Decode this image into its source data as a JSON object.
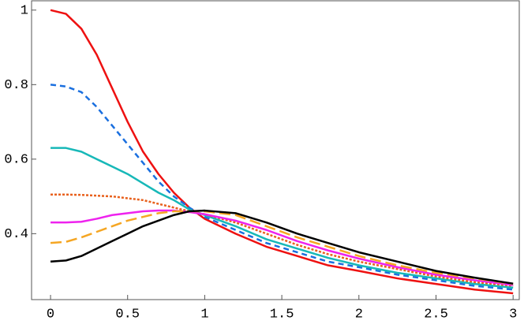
{
  "chart_data": {
    "type": "line",
    "x": [
      0,
      0.1,
      0.2,
      0.3,
      0.4,
      0.5,
      0.6,
      0.7,
      0.8,
      0.9,
      1,
      1.2,
      1.4,
      1.6,
      1.8,
      2,
      2.25,
      2.5,
      2.75,
      3
    ],
    "series": [
      {
        "color": "#ee1111",
        "dash": "none",
        "values": [
          1,
          0.99,
          0.95,
          0.88,
          0.79,
          0.7,
          0.62,
          0.56,
          0.51,
          0.47,
          0.44,
          0.4,
          0.365,
          0.34,
          0.315,
          0.3,
          0.28,
          0.265,
          0.25,
          0.24
        ]
      },
      {
        "color": "#1a6fdf",
        "dash": "7,5",
        "values": [
          0.8,
          0.795,
          0.78,
          0.74,
          0.69,
          0.64,
          0.59,
          0.54,
          0.5,
          0.47,
          0.445,
          0.41,
          0.375,
          0.35,
          0.325,
          0.31,
          0.29,
          0.275,
          0.26,
          0.25
        ]
      },
      {
        "color": "#17b8b8",
        "dash": "none",
        "values": [
          0.63,
          0.63,
          0.62,
          0.6,
          0.58,
          0.56,
          0.535,
          0.51,
          0.49,
          0.465,
          0.45,
          0.42,
          0.385,
          0.36,
          0.335,
          0.315,
          0.295,
          0.28,
          0.265,
          0.255
        ]
      },
      {
        "color": "#e8601c",
        "dash": "3,2",
        "values": [
          0.505,
          0.505,
          0.504,
          0.502,
          0.5,
          0.495,
          0.49,
          0.48,
          0.47,
          0.46,
          0.452,
          0.43,
          0.4,
          0.37,
          0.345,
          0.325,
          0.305,
          0.285,
          0.27,
          0.26
        ]
      },
      {
        "color": "#ee22ee",
        "dash": "none",
        "values": [
          0.43,
          0.43,
          0.432,
          0.44,
          0.45,
          0.455,
          0.46,
          0.462,
          0.462,
          0.458,
          0.452,
          0.435,
          0.41,
          0.38,
          0.355,
          0.333,
          0.31,
          0.29,
          0.275,
          0.262
        ]
      },
      {
        "color": "#f5a623",
        "dash": "14,6",
        "values": [
          0.375,
          0.378,
          0.39,
          0.405,
          0.42,
          0.435,
          0.445,
          0.455,
          0.46,
          0.46,
          0.46,
          0.45,
          0.42,
          0.39,
          0.365,
          0.34,
          0.315,
          0.295,
          0.28,
          0.265
        ]
      },
      {
        "color": "#000000",
        "dash": "none",
        "values": [
          0.325,
          0.328,
          0.34,
          0.36,
          0.38,
          0.4,
          0.42,
          0.435,
          0.45,
          0.46,
          0.462,
          0.455,
          0.43,
          0.4,
          0.375,
          0.35,
          0.325,
          0.3,
          0.282,
          0.266
        ]
      }
    ],
    "xlim": [
      -0.123,
      3.04
    ],
    "ylim": [
      0.223,
      1.025
    ],
    "xticks": [
      0,
      0.5,
      1,
      1.5,
      2,
      2.5,
      3
    ],
    "yticks": [
      0.4,
      0.6,
      0.8,
      1
    ]
  }
}
